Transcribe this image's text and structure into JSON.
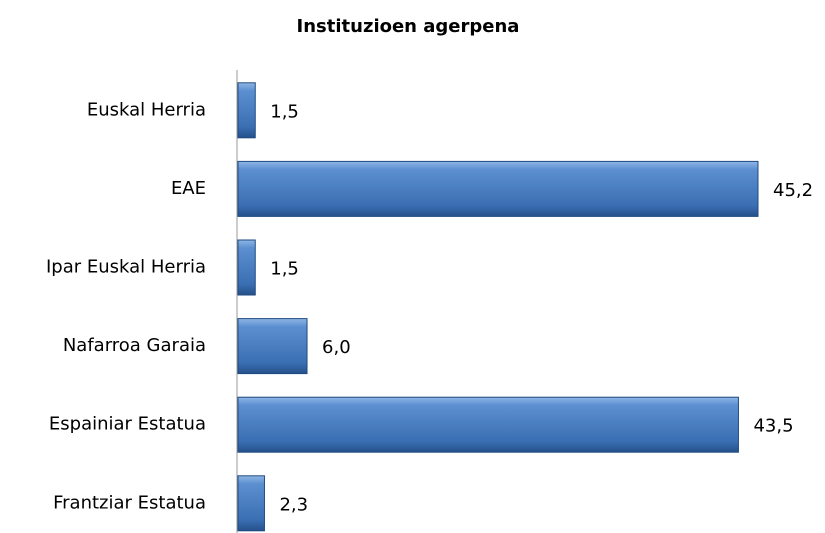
{
  "chart_data": {
    "type": "bar",
    "orientation": "horizontal",
    "title": "Instituzioen agerpena",
    "categories": [
      "Euskal Herria",
      "EAE",
      "Ipar Euskal Herria",
      "Nafarroa Garaia",
      "Espainiar Estatua",
      "Frantziar Estatua"
    ],
    "values": [
      1.5,
      45.2,
      1.5,
      6.0,
      43.5,
      2.3
    ],
    "value_labels": [
      "1,5",
      "45,2",
      "1,5",
      "6,0",
      "43,5",
      "2,3"
    ],
    "color": "#3a6fb3"
  }
}
